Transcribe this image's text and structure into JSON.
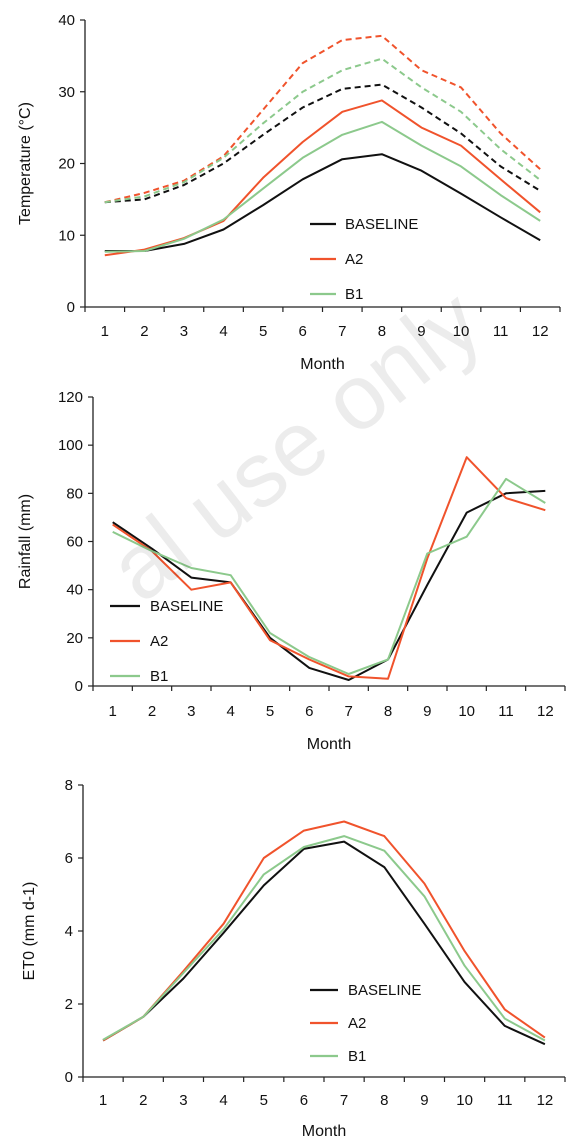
{
  "watermark": "al use only",
  "chart_data": [
    {
      "type": "line",
      "ylabel": "Temperature (°C)",
      "xlabel": "Month",
      "ylim": [
        0,
        40
      ],
      "yticks": [
        0,
        10,
        20,
        30,
        40
      ],
      "categories": [
        "1",
        "2",
        "3",
        "4",
        "5",
        "6",
        "7",
        "8",
        "9",
        "10",
        "11",
        "12"
      ],
      "legend_position": "center-right",
      "series": [
        {
          "name": "BASELINE",
          "color": "#111111",
          "style": "solid",
          "legend": true,
          "values": [
            7.8,
            7.8,
            8.8,
            10.8,
            14.2,
            17.8,
            20.6,
            21.3,
            19.0,
            15.8,
            12.5,
            9.3
          ]
        },
        {
          "name": "A2",
          "color": "#f0532c",
          "style": "solid",
          "legend": true,
          "values": [
            7.2,
            8.0,
            9.6,
            12.0,
            18.0,
            23.0,
            27.2,
            28.8,
            25.0,
            22.5,
            17.8,
            13.2
          ]
        },
        {
          "name": "B1",
          "color": "#8cc98c",
          "style": "solid",
          "legend": true,
          "values": [
            7.7,
            7.8,
            9.5,
            12.2,
            16.5,
            20.8,
            24.0,
            25.8,
            22.5,
            19.6,
            15.6,
            12.0
          ]
        },
        {
          "color": "#111111",
          "style": "dashed",
          "legend": false,
          "values": [
            14.6,
            15.0,
            17.0,
            20.0,
            24.0,
            27.8,
            30.4,
            31.0,
            27.8,
            24.2,
            19.6,
            16.2
          ]
        },
        {
          "color": "#f0532c",
          "style": "dashed",
          "legend": false,
          "values": [
            14.6,
            15.9,
            17.6,
            21.0,
            27.5,
            34.0,
            37.2,
            37.8,
            33.0,
            30.6,
            24.2,
            19.2
          ]
        },
        {
          "color": "#8cc98c",
          "style": "dashed",
          "legend": false,
          "values": [
            14.6,
            15.4,
            17.4,
            20.8,
            25.6,
            30.0,
            33.0,
            34.6,
            30.6,
            27.2,
            22.0,
            17.7
          ]
        }
      ]
    },
    {
      "type": "line",
      "ylabel": "Rainfall (mm)",
      "xlabel": "Month",
      "ylim": [
        0,
        120
      ],
      "yticks": [
        0,
        20,
        40,
        60,
        80,
        100,
        120
      ],
      "categories": [
        "1",
        "2",
        "3",
        "4",
        "5",
        "6",
        "7",
        "8",
        "9",
        "10",
        "11",
        "12"
      ],
      "legend_position": "lower-left",
      "series": [
        {
          "name": "BASELINE",
          "color": "#111111",
          "style": "solid",
          "legend": true,
          "values": [
            68,
            57,
            45,
            43,
            20,
            7.5,
            2.5,
            11,
            42,
            72,
            80,
            81
          ]
        },
        {
          "name": "A2",
          "color": "#f0532c",
          "style": "solid",
          "legend": true,
          "values": [
            67,
            56,
            40,
            43,
            19,
            11,
            4,
            3,
            53,
            95,
            78,
            73
          ]
        },
        {
          "name": "B1",
          "color": "#8cc98c",
          "style": "solid",
          "legend": true,
          "values": [
            64,
            56,
            49,
            46,
            22,
            12,
            5,
            11,
            55,
            62,
            86,
            76
          ]
        }
      ]
    },
    {
      "type": "line",
      "ylabel": "ET0 (mm d-1)",
      "xlabel": "Month",
      "ylim": [
        0,
        8
      ],
      "yticks": [
        0,
        2,
        4,
        6,
        8
      ],
      "categories": [
        "1",
        "2",
        "3",
        "4",
        "5",
        "6",
        "7",
        "8",
        "9",
        "10",
        "11",
        "12"
      ],
      "legend_position": "lower-right",
      "series": [
        {
          "name": "BASELINE",
          "color": "#111111",
          "style": "solid",
          "legend": true,
          "values": [
            1.0,
            1.65,
            2.7,
            3.95,
            5.25,
            6.25,
            6.45,
            5.75,
            4.2,
            2.6,
            1.4,
            0.9
          ]
        },
        {
          "name": "A2",
          "color": "#f0532c",
          "style": "solid",
          "legend": true,
          "values": [
            1.0,
            1.65,
            2.9,
            4.2,
            6.0,
            6.75,
            7.0,
            6.6,
            5.3,
            3.45,
            1.85,
            1.08
          ]
        },
        {
          "name": "B1",
          "color": "#8cc98c",
          "style": "solid",
          "legend": true,
          "values": [
            1.02,
            1.65,
            2.85,
            4.05,
            5.55,
            6.3,
            6.6,
            6.2,
            4.95,
            3.05,
            1.6,
            1.0
          ]
        }
      ]
    }
  ]
}
